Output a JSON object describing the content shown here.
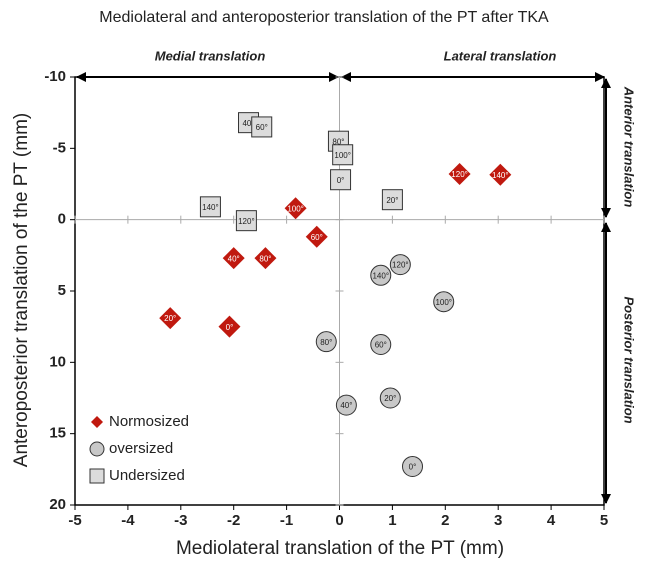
{
  "chart_data": {
    "type": "scatter",
    "title": "Mediolateral and anteroposterior translation of the PT after TKA",
    "x_label": "Mediolateral translation of the PT (mm)",
    "y_label": "Anteroposterior translation of the PT (mm)",
    "annotations": [
      "Medial translation",
      "Lateral translation",
      "Anterior translation",
      "Posterior translation"
    ],
    "xlim": [
      -5,
      5
    ],
    "xticks": [
      -5,
      -4,
      -3,
      -2,
      -1,
      0,
      1,
      2,
      3,
      4,
      5
    ],
    "ylim": [
      -10,
      20
    ],
    "yticks": [
      -10,
      -5,
      0,
      5,
      10,
      15,
      20
    ],
    "y_inverted": true,
    "legend": "lower left",
    "series": [
      {
        "name": "Normosized",
        "color": "#c0190f",
        "marker": "diamond",
        "labels": [
          "120°",
          "140°",
          "100°",
          "60°",
          "40°",
          "80°",
          "20°",
          "0°"
        ],
        "x": [
          2.27,
          3.04,
          -0.83,
          -0.43,
          -2.0,
          -1.4,
          -3.2,
          -2.08
        ],
        "values": [
          -3.2,
          -3.15,
          -0.8,
          1.2,
          2.7,
          2.7,
          6.9,
          7.5
        ]
      },
      {
        "name": "oversized",
        "color": "#c8c8c8",
        "marker": "circle",
        "labels": [
          "120°",
          "140°",
          "100°",
          "80°",
          "60°",
          "20°",
          "40°",
          "0°"
        ],
        "x": [
          1.15,
          0.78,
          1.97,
          -0.25,
          0.78,
          0.96,
          0.13,
          1.38
        ],
        "values": [
          3.15,
          3.9,
          5.75,
          8.55,
          8.75,
          12.5,
          13.0,
          17.3
        ]
      },
      {
        "name": "Undersized",
        "color": "#dcdcdc",
        "marker": "square",
        "labels": [
          "40°",
          "60°",
          "80°",
          "100°",
          "0°",
          "20°",
          "140°",
          "120°"
        ],
        "x": [
          -1.72,
          -1.47,
          -0.02,
          0.06,
          0.02,
          1.0,
          -2.44,
          -1.76
        ],
        "values": [
          -6.8,
          -6.5,
          -5.5,
          -4.55,
          -2.8,
          -1.4,
          -0.9,
          0.07
        ]
      }
    ]
  }
}
